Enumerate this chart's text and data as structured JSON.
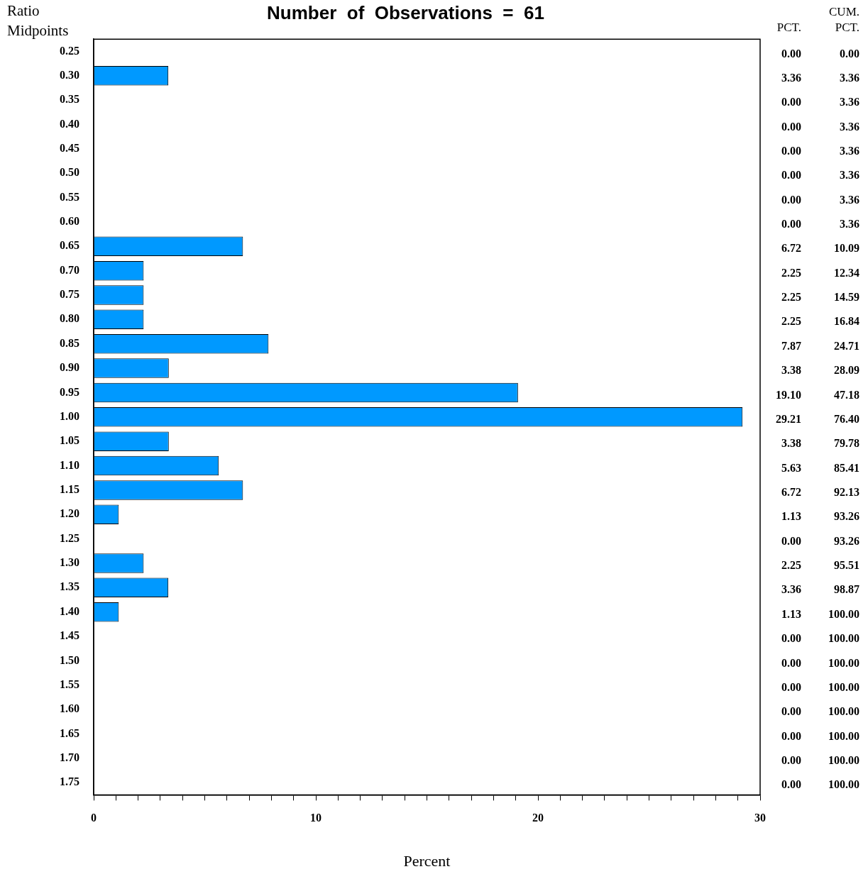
{
  "chart_data": {
    "type": "bar",
    "orientation": "horizontal",
    "title": "Number  of  Observations  =  61",
    "ylabel": "Ratio Midpoints",
    "xlabel": "Percent",
    "categories": [
      "0.25",
      "0.30",
      "0.35",
      "0.40",
      "0.45",
      "0.50",
      "0.55",
      "0.60",
      "0.65",
      "0.70",
      "0.75",
      "0.80",
      "0.85",
      "0.90",
      "0.95",
      "1.00",
      "1.05",
      "1.10",
      "1.15",
      "1.20",
      "1.25",
      "1.30",
      "1.35",
      "1.40",
      "1.45",
      "1.50",
      "1.55",
      "1.60",
      "1.65",
      "1.70",
      "1.75"
    ],
    "values": [
      0,
      3.36,
      0,
      0,
      0,
      0,
      0,
      0,
      6.72,
      2.25,
      2.25,
      2.25,
      7.87,
      3.38,
      19.1,
      29.21,
      3.38,
      5.63,
      6.72,
      1.13,
      0,
      2.25,
      3.36,
      1.13,
      0,
      0,
      0,
      0,
      0,
      0,
      0
    ],
    "value_labels": [
      "0.00",
      "3.36",
      "0.00",
      "0.00",
      "0.00",
      "0.00",
      "0.00",
      "0.00",
      "6.72",
      "2.25",
      "2.25",
      "2.25",
      "7.87",
      "3.38",
      "19.10",
      "29.21",
      "3.38",
      "5.63",
      "6.72",
      "1.13",
      "0.00",
      "2.25",
      "3.36",
      "1.13",
      "0.00",
      "0.00",
      "0.00",
      "0.00",
      "0.00",
      "0.00",
      "0.00"
    ],
    "color": "#0099ff",
    "xlim": [
      0,
      30
    ],
    "xticks": [
      0,
      {
        "value": 1,
        "label": null
      },
      {
        "value": 2,
        "label": null
      },
      {
        "value": 3,
        "label": null
      },
      {
        "value": 4,
        "label": null
      },
      {
        "value": 5,
        "label": null
      },
      {
        "value": 6,
        "label": null
      },
      {
        "value": 7,
        "label": null
      },
      {
        "value": 8,
        "label": null
      },
      {
        "value": 9,
        "label": null
      },
      10,
      {
        "value": 11,
        "label": null
      },
      {
        "value": 12,
        "label": null
      },
      {
        "value": 13,
        "label": null
      },
      {
        "value": 14,
        "label": null
      },
      {
        "value": 15,
        "label": null
      },
      {
        "value": 16,
        "label": null
      },
      {
        "value": 17,
        "label": null
      },
      {
        "value": 18,
        "label": null
      },
      {
        "value": 19,
        "label": null
      },
      20,
      {
        "value": 21,
        "label": null
      },
      {
        "value": 22,
        "label": null
      },
      {
        "value": 23,
        "label": null
      },
      {
        "value": 24,
        "label": null
      },
      {
        "value": 25,
        "label": null
      },
      {
        "value": 26,
        "label": null
      },
      {
        "value": 27,
        "label": null
      },
      {
        "value": 28,
        "label": null
      },
      {
        "value": 29,
        "label": null
      },
      30
    ],
    "grid": false,
    "annotations": [
      "PCT.",
      "CUM. PCT.",
      "0.00",
      "3.36",
      "3.36",
      "3.36",
      "3.36",
      "3.36",
      "3.36",
      "3.36",
      "10.09",
      "12.34",
      "14.59",
      "16.84",
      "24.71",
      "28.09",
      "47.18",
      "76.40",
      "79.78",
      "85.41",
      "92.13",
      "93.26",
      "93.26",
      "95.51",
      "98.87",
      "100.00",
      "100.00",
      "100.00",
      "100.00",
      "100.00",
      "100.00",
      "100.00",
      "100.00"
    ]
  }
}
